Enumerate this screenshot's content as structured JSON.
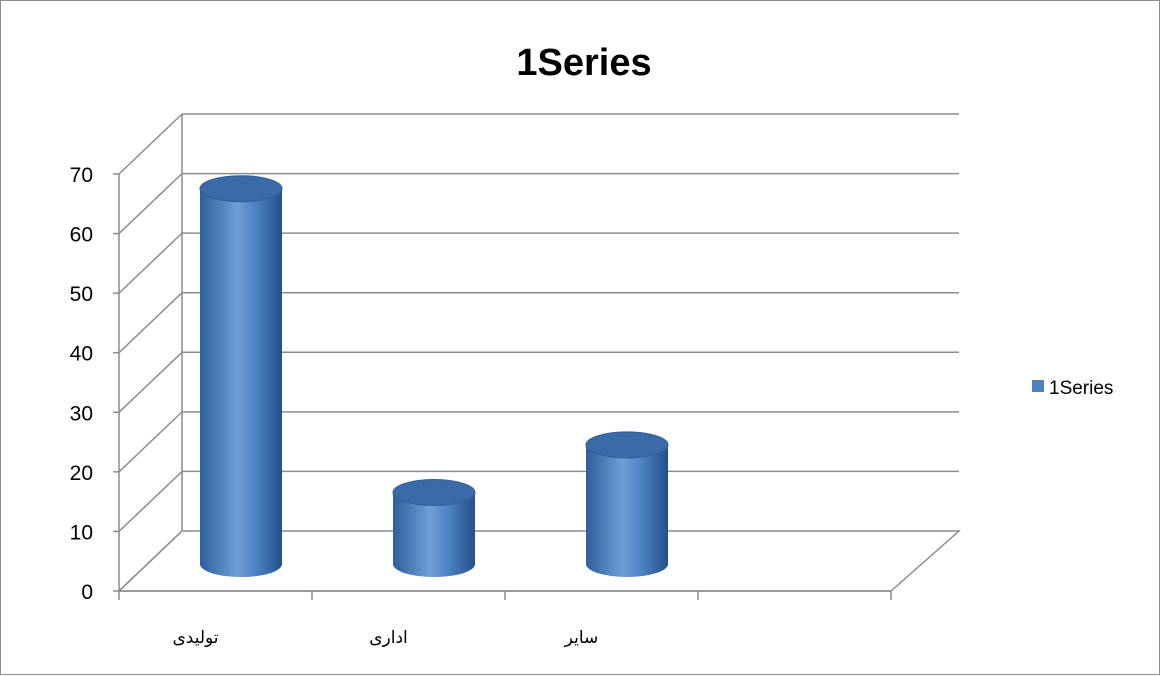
{
  "chart_data": {
    "type": "bar",
    "bar_shape": "cylinder",
    "title": "1Series",
    "categories": [
      "تولیدی",
      "اداری",
      "سایر",
      ""
    ],
    "series": [
      {
        "name": "1Series",
        "values": [
          63,
          12,
          20,
          null
        ],
        "color": "#4F81BD"
      }
    ],
    "y_ticks": [
      "0",
      "10",
      "20",
      "30",
      "40",
      "50",
      "60",
      "70"
    ],
    "ylim": [
      0,
      70
    ],
    "grid": true,
    "legend_position": "right"
  }
}
